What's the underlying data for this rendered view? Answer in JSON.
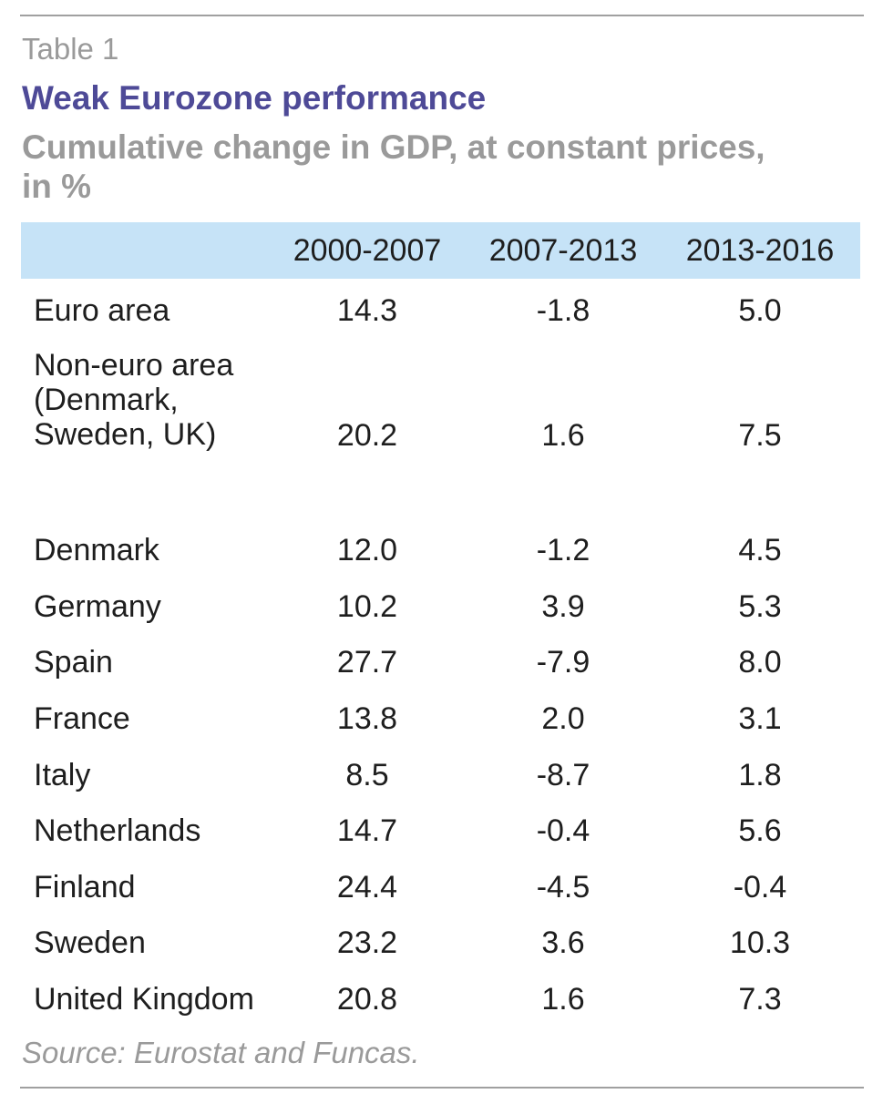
{
  "table": {
    "label": "Table 1",
    "title": "Weak Eurozone performance",
    "subtitle": "Cumulative change in GDP, at constant prices, in %",
    "columns": [
      "",
      "2000-2007",
      "2007-2013",
      "2013-2016"
    ],
    "rows": [
      {
        "label": "Euro area",
        "values": [
          "14.3",
          "-1.8",
          "5.0"
        ]
      },
      {
        "label": "Non-euro area (Denmark, Sweden, UK)",
        "values": [
          "20.2",
          "1.6",
          "7.5"
        ]
      },
      {
        "label": "Denmark",
        "values": [
          "12.0",
          "-1.2",
          "4.5"
        ]
      },
      {
        "label": "Germany",
        "values": [
          "10.2",
          "3.9",
          "5.3"
        ]
      },
      {
        "label": "Spain",
        "values": [
          "27.7",
          "-7.9",
          "8.0"
        ]
      },
      {
        "label": "France",
        "values": [
          "13.8",
          "2.0",
          "3.1"
        ]
      },
      {
        "label": "Italy",
        "values": [
          "8.5",
          "-8.7",
          "1.8"
        ]
      },
      {
        "label": "Netherlands",
        "values": [
          "14.7",
          "-0.4",
          "5.6"
        ]
      },
      {
        "label": "Finland",
        "values": [
          "24.4",
          "-4.5",
          "-0.4"
        ]
      },
      {
        "label": "Sweden",
        "values": [
          "23.2",
          "3.6",
          "10.3"
        ]
      },
      {
        "label": "United Kingdom",
        "values": [
          "20.8",
          "1.6",
          "7.3"
        ]
      }
    ],
    "source": "Source: Eurostat and Funcas."
  }
}
